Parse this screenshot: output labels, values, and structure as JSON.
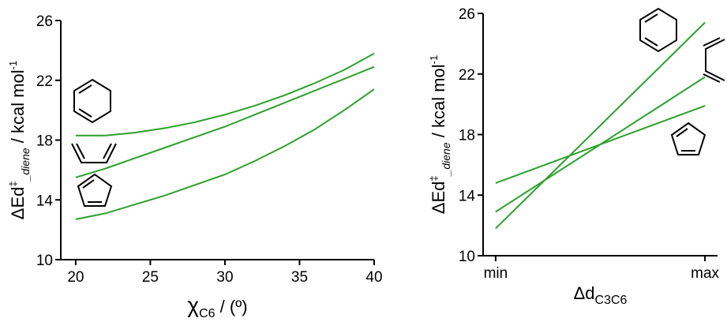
{
  "chart_data": [
    {
      "type": "line",
      "xlim": [
        19,
        40
      ],
      "ylim": [
        10,
        26
      ],
      "x_ticks": [
        20,
        25,
        30,
        35,
        40
      ],
      "y_ticks": [
        10,
        14,
        18,
        22,
        26
      ],
      "x_tick_labels": [
        "20",
        "25",
        "30",
        "35",
        "40"
      ],
      "y_tick_labels": [
        "10",
        "14",
        "18",
        "22",
        "26"
      ],
      "ylabel": {
        "main": "ΔEd",
        "sup": "‡",
        "sub": "_diene",
        "unit": " / kcal mol",
        "unit_sup": "-1"
      },
      "xlabel": {
        "main": "χ",
        "sub": "C6",
        "unit": " / (º)"
      },
      "line_color": "#2ca02c",
      "series": [
        {
          "icon": "cyclohexadiene-icon",
          "x": [
            20,
            22,
            24,
            26,
            28,
            30,
            32,
            34,
            36,
            38,
            40
          ],
          "values": [
            18.3,
            18.3,
            18.5,
            18.8,
            19.2,
            19.7,
            20.3,
            21.0,
            21.8,
            22.7,
            23.8
          ]
        },
        {
          "icon": "butadiene-icon",
          "x": [
            20,
            22,
            24,
            26,
            28,
            30,
            32,
            34,
            36,
            38,
            40
          ],
          "values": [
            15.5,
            16.1,
            16.8,
            17.5,
            18.2,
            18.9,
            19.7,
            20.5,
            21.3,
            22.1,
            22.9
          ]
        },
        {
          "icon": "cyclopentadiene-icon",
          "x": [
            20,
            22,
            24,
            26,
            28,
            30,
            32,
            34,
            36,
            38,
            40
          ],
          "values": [
            12.7,
            13.1,
            13.7,
            14.3,
            15.0,
            15.7,
            16.6,
            17.6,
            18.7,
            20.0,
            21.4
          ]
        }
      ]
    },
    {
      "type": "line",
      "xlim": [
        -0.06,
        1.06
      ],
      "ylim": [
        10,
        26
      ],
      "x_ticks": [
        0,
        1
      ],
      "x_tick_labels": [
        "min",
        "max"
      ],
      "y_ticks": [
        10,
        14,
        18,
        22,
        26
      ],
      "y_tick_labels": [
        "10",
        "14",
        "18",
        "22",
        "26"
      ],
      "ylabel": {
        "main": "ΔEd",
        "sup": "‡",
        "sub": "_diene",
        "unit": " / kcal mol",
        "unit_sup": "-1"
      },
      "xlabel": {
        "main": "Δd",
        "sub": "C3C6"
      },
      "line_color": "#2ca02c",
      "series": [
        {
          "icon": "cyclohexadiene-icon",
          "x": [
            0,
            1
          ],
          "values": [
            11.8,
            25.4
          ]
        },
        {
          "icon": "butadiene-icon",
          "x": [
            0,
            1
          ],
          "values": [
            12.9,
            21.8
          ]
        },
        {
          "icon": "cyclopentadiene-icon",
          "x": [
            0,
            1
          ],
          "values": [
            14.8,
            19.9
          ]
        }
      ]
    }
  ]
}
